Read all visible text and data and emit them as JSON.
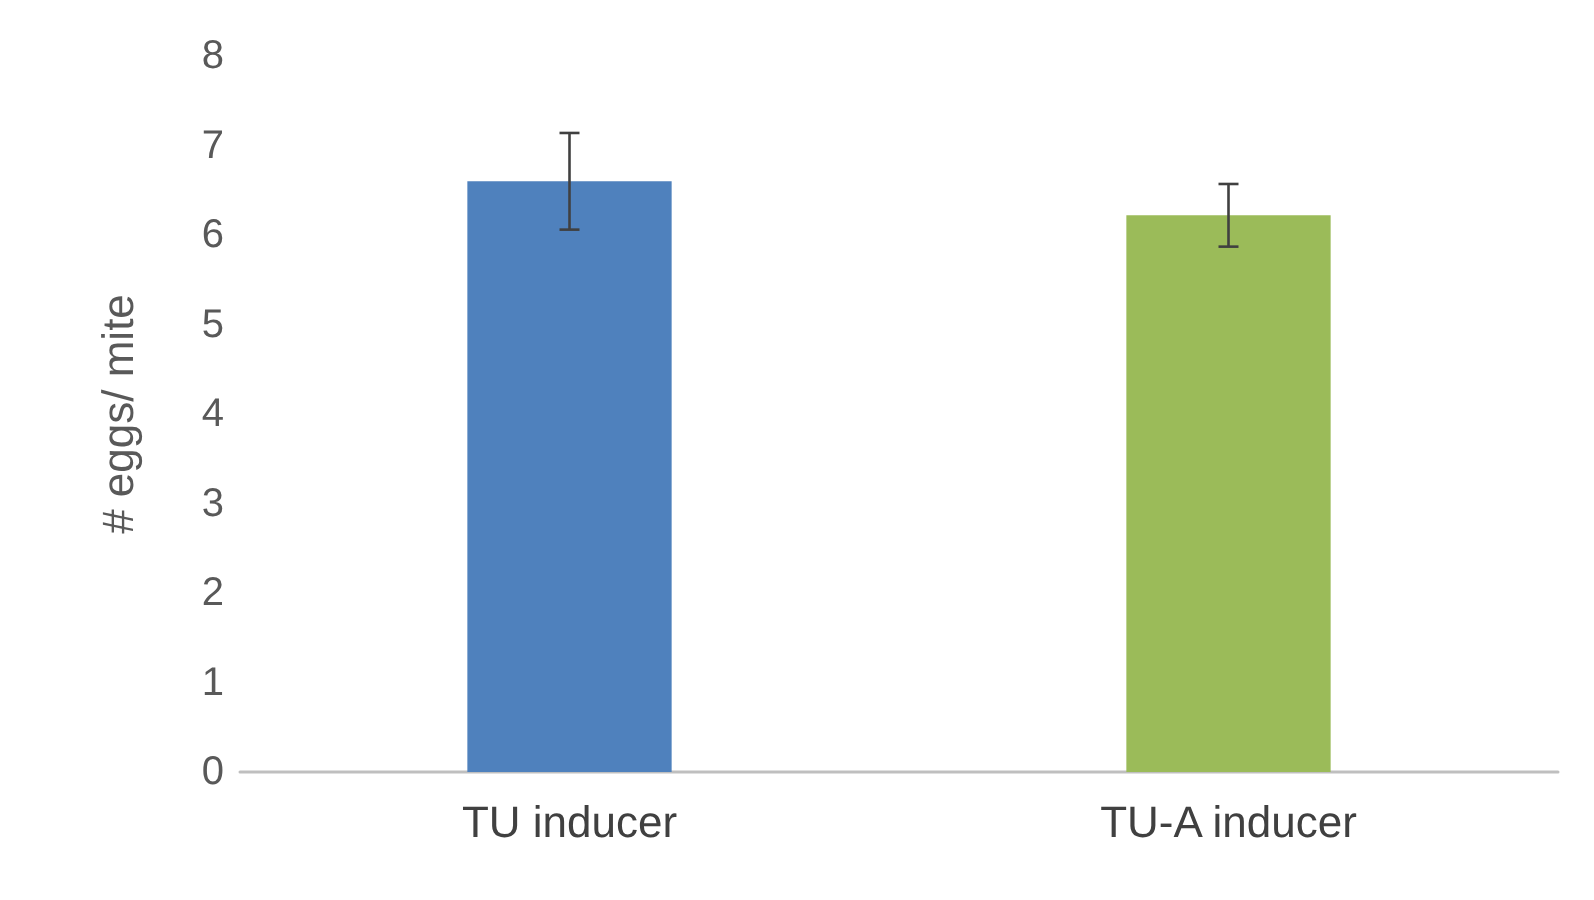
{
  "chart_data": {
    "type": "bar",
    "ylabel": "# eggs/ mite",
    "categories": [
      "TU inducer",
      "TU-A inducer"
    ],
    "values": [
      6.6,
      6.22
    ],
    "colors": [
      "#4f81bd",
      "#9bbb59"
    ],
    "errors": [
      0.54,
      0.35
    ],
    "ylim": [
      0,
      8
    ],
    "yticks": [
      0,
      1,
      2,
      3,
      4,
      5,
      6,
      7,
      8
    ],
    "grid": false
  }
}
